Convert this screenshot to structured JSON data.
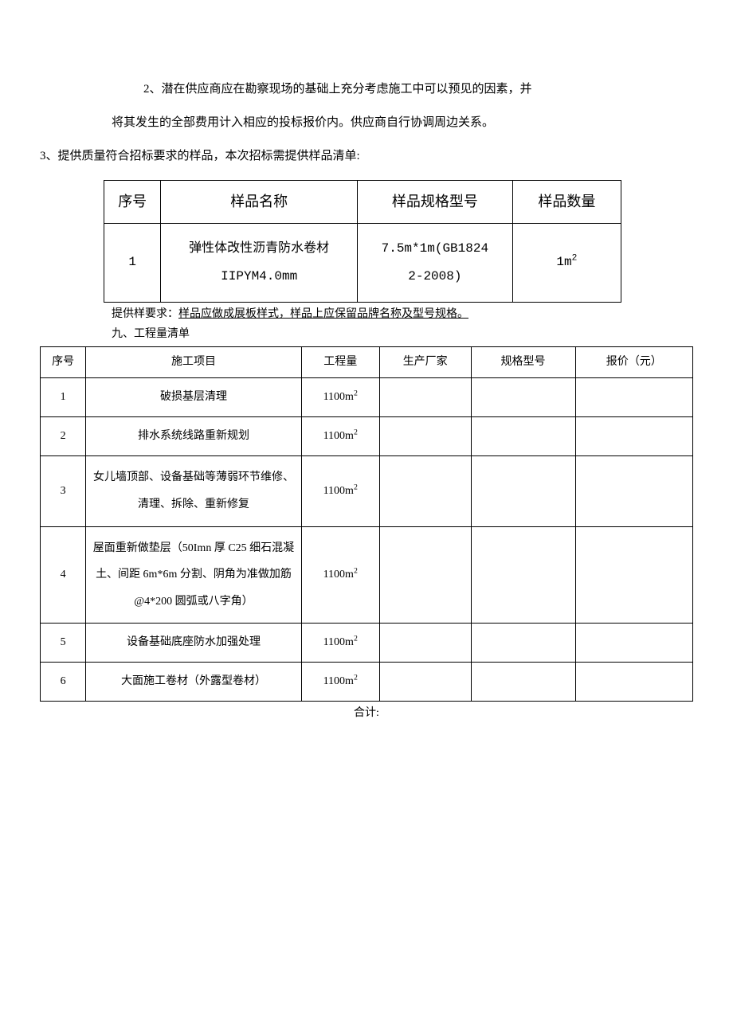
{
  "paragraphs": {
    "p1": "2、潜在供应商应在勘察现场的基础上充分考虑施工中可以预见的因素，并",
    "p2": "将其发生的全部费用计入相应的投标报价内。供应商自行协调周边关系。",
    "p3": "3、提供质量符合招标要求的样品，本次招标需提供样品清单:"
  },
  "table1": {
    "headers": {
      "seq": "序号",
      "name": "样品名称",
      "spec": "样品规格型号",
      "qty": "样品数量"
    },
    "row": {
      "seq": "1",
      "name_html": "弹性体改性沥青防水卷材<br>IIPYM4.0mm",
      "spec_html": "7.5m*1m(GB1824<br>2-2008)",
      "qty_html": "1m<sup>2</sup>"
    }
  },
  "note": {
    "prefix": "提供样要求：",
    "underlined": "样品应做成展板样式，样品上应保留品牌名称及型号规格。"
  },
  "section9": "九、工程量清单",
  "table2": {
    "headers": {
      "seq": "序号",
      "proj": "施工项目",
      "qty": "工程量",
      "mfr": "生产厂家",
      "spec": "规格型号",
      "price": "报价（元）"
    },
    "rows": [
      {
        "seq": "1",
        "proj": "破损基层清理",
        "qty_html": "1100m<sup>2</sup>",
        "mfr": "",
        "spec": "",
        "price": ""
      },
      {
        "seq": "2",
        "proj": "排水系统线路重新规划",
        "qty_html": "1100m<sup>2</sup>",
        "mfr": "",
        "spec": "",
        "price": ""
      },
      {
        "seq": "3",
        "proj": "女儿墙顶部、设备基础等薄弱环节维修、清理、拆除、重新修复",
        "qty_html": "1100m<sup>2</sup>",
        "mfr": "",
        "spec": "",
        "price": "",
        "tall": true
      },
      {
        "seq": "4",
        "proj": "屋面重新做垫层（50Imn 厚 C25 细石混凝土、间距 6m*6m 分割、阴角为准做加筋@4*200 圆弧或八字角）",
        "qty_html": "1100m<sup>2</sup>",
        "mfr": "",
        "spec": "",
        "price": "",
        "tall": true
      },
      {
        "seq": "5",
        "proj": "设备基础底座防水加强处理",
        "qty_html": "1100m<sup>2</sup>",
        "mfr": "",
        "spec": "",
        "price": ""
      },
      {
        "seq": "6",
        "proj": "大面施工卷材（外露型卷材）",
        "qty_html": "1100m<sup>2</sup>",
        "mfr": "",
        "spec": "",
        "price": ""
      }
    ]
  },
  "total": "合计:",
  "colors": {
    "text": "#000000",
    "background": "#ffffff",
    "border": "#000000"
  }
}
